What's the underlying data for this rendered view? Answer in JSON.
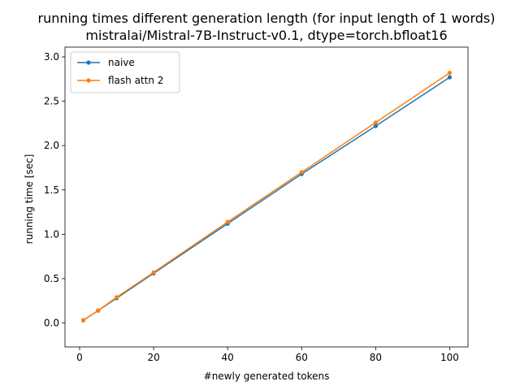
{
  "chart_data": {
    "type": "line",
    "title": "running times different generation length (for input length of 1 words)",
    "subtitle": "mistralai/Mistral-7B-Instruct-v0.1, dtype=torch.bfloat16",
    "xlabel": "#newly generated tokens",
    "ylabel": "running time [sec]",
    "x": [
      1,
      5,
      10,
      20,
      40,
      60,
      80,
      100
    ],
    "xlim": [
      -3.95,
      104.95
    ],
    "ylim": [
      -0.27,
      3.11
    ],
    "xticks": [
      0,
      20,
      40,
      60,
      80,
      100
    ],
    "yticks": [
      0.0,
      0.5,
      1.0,
      1.5,
      2.0,
      2.5,
      3.0
    ],
    "xtick_labels": [
      "0",
      "20",
      "40",
      "60",
      "80",
      "100"
    ],
    "ytick_labels": [
      "0.0",
      "0.5",
      "1.0",
      "1.5",
      "2.0",
      "2.5",
      "3.0"
    ],
    "grid": false,
    "legend_position": "top-left",
    "series": [
      {
        "name": "naive",
        "color": "#1f77b4",
        "values": [
          0.03,
          0.14,
          0.28,
          0.56,
          1.12,
          1.68,
          2.22,
          2.77
        ]
      },
      {
        "name": "flash attn 2",
        "color": "#ff7f0e",
        "values": [
          0.03,
          0.14,
          0.29,
          0.57,
          1.14,
          1.7,
          2.26,
          2.82
        ]
      }
    ]
  }
}
